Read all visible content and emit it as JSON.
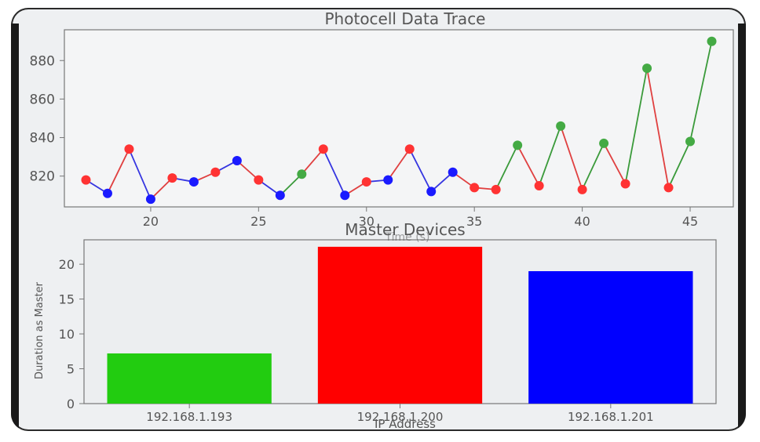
{
  "chart_data": [
    {
      "type": "line",
      "title": "Photocell Data Trace",
      "xlabel": "Time (s)",
      "ylabel": "",
      "xlim": [
        16,
        47
      ],
      "ylim": [
        804,
        896
      ],
      "xticks": [
        20,
        25,
        30,
        35,
        40,
        45
      ],
      "yticks": [
        820,
        840,
        860,
        880
      ],
      "grid": false,
      "x": [
        17,
        18,
        19,
        20,
        21,
        22,
        23,
        24,
        25,
        26,
        27,
        28,
        29,
        30,
        31,
        32,
        33,
        34,
        35,
        36,
        37,
        38,
        39,
        40,
        41,
        42,
        43,
        44,
        45,
        46
      ],
      "values": [
        818,
        811,
        834,
        808,
        819,
        817,
        822,
        828,
        818,
        810,
        821,
        834,
        810,
        817,
        818,
        834,
        812,
        822,
        814,
        813,
        836,
        815,
        846,
        813,
        837,
        816,
        876,
        814,
        838,
        890
      ],
      "point_colors": [
        "red",
        "blue",
        "red",
        "blue",
        "red",
        "blue",
        "red",
        "blue",
        "red",
        "blue",
        "green",
        "red",
        "blue",
        "red",
        "blue",
        "red",
        "blue",
        "blue",
        "red",
        "red",
        "green",
        "red",
        "green",
        "red",
        "green",
        "red",
        "green",
        "red",
        "green",
        "green"
      ]
    },
    {
      "type": "bar",
      "title": "Master Devices",
      "xlabel": "IP Address",
      "ylabel": "Duration as Master",
      "ylim": [
        0,
        23.5
      ],
      "yticks": [
        0,
        5,
        10,
        15,
        20
      ],
      "categories": [
        "192.168.1.193",
        "192.168.1.200",
        "192.168.1.201"
      ],
      "values": [
        7.2,
        22.5,
        19.0
      ],
      "colors": [
        "#22cc10",
        "#ff0000",
        "#0000ff"
      ],
      "grid": false
    }
  ],
  "colors": {
    "red": "#ff3333",
    "blue": "#1a1aff",
    "green": "#44aa44",
    "line_red": "#e04040",
    "line_blue": "#3535e0",
    "line_green": "#3a9a3a"
  }
}
